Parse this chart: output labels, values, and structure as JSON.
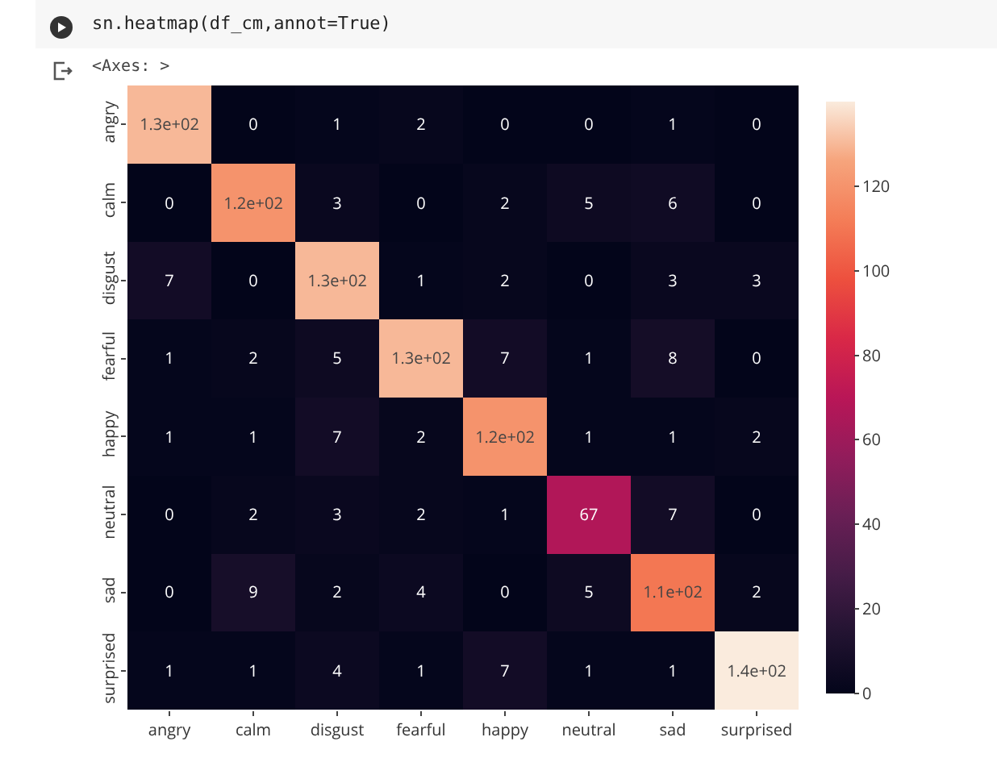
{
  "chart_data": {
    "type": "heatmap",
    "annotations": [
      "sn.heatmap(df_cm,annot=True)",
      "<Axes: >"
    ],
    "categories": [
      "angry",
      "calm",
      "disgust",
      "fearful",
      "happy",
      "neutral",
      "sad",
      "surprised"
    ],
    "y_categories": [
      "angry",
      "calm",
      "disgust",
      "fearful",
      "happy",
      "neutral",
      "sad",
      "surprised"
    ],
    "cells": [
      [
        130,
        0,
        1,
        2,
        0,
        0,
        1,
        0
      ],
      [
        0,
        120,
        3,
        0,
        2,
        5,
        6,
        0
      ],
      [
        7,
        0,
        130,
        1,
        2,
        0,
        3,
        3
      ],
      [
        1,
        2,
        5,
        130,
        7,
        1,
        8,
        0
      ],
      [
        1,
        1,
        7,
        2,
        120,
        1,
        1,
        2
      ],
      [
        0,
        2,
        3,
        2,
        1,
        67,
        7,
        0
      ],
      [
        0,
        9,
        2,
        4,
        0,
        5,
        110,
        2
      ],
      [
        1,
        1,
        4,
        1,
        7,
        1,
        1,
        140
      ]
    ],
    "cell_labels": [
      [
        "1.3e+02",
        "0",
        "1",
        "2",
        "0",
        "0",
        "1",
        "0"
      ],
      [
        "0",
        "1.2e+02",
        "3",
        "0",
        "2",
        "5",
        "6",
        "0"
      ],
      [
        "7",
        "0",
        "1.3e+02",
        "1",
        "2",
        "0",
        "3",
        "3"
      ],
      [
        "1",
        "2",
        "5",
        "1.3e+02",
        "7",
        "1",
        "8",
        "0"
      ],
      [
        "1",
        "1",
        "7",
        "2",
        "1.2e+02",
        "1",
        "1",
        "2"
      ],
      [
        "0",
        "2",
        "3",
        "2",
        "1",
        "67",
        "7",
        "0"
      ],
      [
        "0",
        "9",
        "2",
        "4",
        "0",
        "5",
        "1.1e+02",
        "2"
      ],
      [
        "1",
        "1",
        "4",
        "1",
        "7",
        "1",
        "1",
        "1.4e+02"
      ]
    ],
    "clim": [
      0,
      140
    ],
    "cticks": [
      0,
      20,
      40,
      60,
      80,
      100,
      120
    ]
  }
}
